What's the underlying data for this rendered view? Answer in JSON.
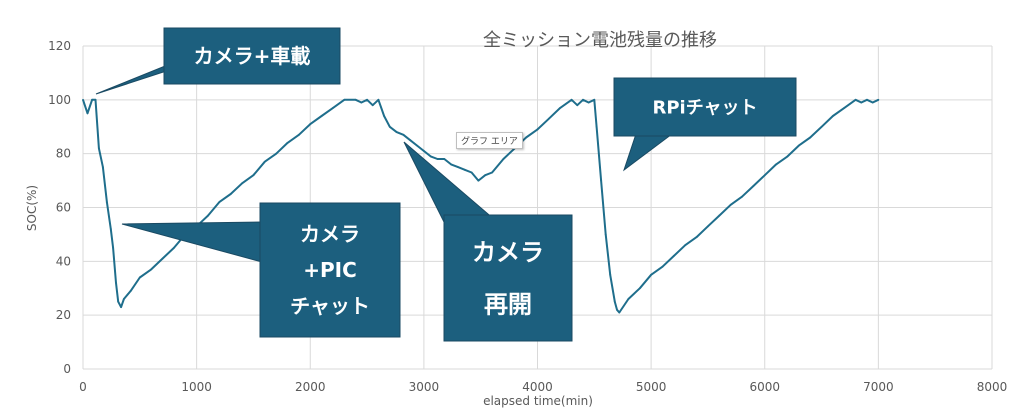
{
  "colors": {
    "line": "#1f6e8c",
    "callout_fill": "#1c5f7e",
    "grid": "#d9d9d9"
  },
  "tooltip": "グラフ エリア",
  "chart_data": {
    "type": "line",
    "title": "全ミッション電池残量の推移",
    "xlabel": "elapsed time(min)",
    "ylabel": "SOC(%)",
    "xlim": [
      0,
      8000
    ],
    "ylim": [
      0,
      120
    ],
    "xticks": [
      0,
      1000,
      2000,
      3000,
      4000,
      5000,
      6000,
      7000,
      8000
    ],
    "yticks": [
      0,
      20,
      40,
      60,
      80,
      100,
      120
    ],
    "grid": true,
    "series": [
      {
        "x": [
          0,
          40,
          80,
          110,
          140,
          175,
          210,
          245,
          265,
          290,
          310,
          335,
          360,
          420,
          500,
          600,
          700,
          800,
          900,
          1000,
          1100,
          1200,
          1300,
          1400,
          1500,
          1600,
          1700,
          1800,
          1900,
          2000,
          2100,
          2200,
          2300,
          2400,
          2450,
          2500,
          2550,
          2600,
          2650,
          2700,
          2760,
          2820,
          2880,
          2940,
          3000,
          3060,
          3120,
          3180,
          3240,
          3300,
          3360,
          3420,
          3480,
          3540,
          3600,
          3700,
          3800,
          3900,
          4000,
          4100,
          4200,
          4300,
          4350,
          4400,
          4450,
          4500,
          4520,
          4560,
          4600,
          4640,
          4680,
          4700,
          4720,
          4800,
          4900,
          5000,
          5100,
          5200,
          5300,
          5400,
          5500,
          5600,
          5700,
          5800,
          5900,
          6000,
          6100,
          6200,
          6300,
          6400,
          6500,
          6600,
          6700,
          6800,
          6850,
          6900,
          6950,
          7000
        ],
        "y": [
          100,
          95,
          100,
          100,
          82,
          75,
          62,
          52,
          45,
          32,
          25,
          23,
          26,
          29,
          34,
          37,
          41,
          45,
          50,
          53,
          57,
          62,
          65,
          69,
          72,
          77,
          80,
          84,
          87,
          91,
          94,
          97,
          100,
          100,
          99,
          100,
          98,
          100,
          94,
          90,
          88,
          87,
          85,
          83,
          81,
          79,
          78,
          78,
          76,
          75,
          74,
          73,
          70,
          72,
          73,
          78,
          82,
          86,
          89,
          93,
          97,
          100,
          98,
          100,
          99,
          100,
          90,
          70,
          50,
          35,
          25,
          22,
          21,
          26,
          30,
          35,
          38,
          42,
          46,
          49,
          53,
          57,
          61,
          64,
          68,
          72,
          76,
          79,
          83,
          86,
          90,
          94,
          97,
          100,
          99,
          100,
          99,
          100
        ]
      }
    ],
    "annotations": [
      {
        "lines": [
          "カメラ+車載"
        ]
      },
      {
        "lines": [
          "カメラ",
          "+PIC",
          "チャット"
        ]
      },
      {
        "lines": [
          "カメラ",
          "再開"
        ]
      },
      {
        "lines": [
          "RPiチャット"
        ]
      }
    ]
  }
}
